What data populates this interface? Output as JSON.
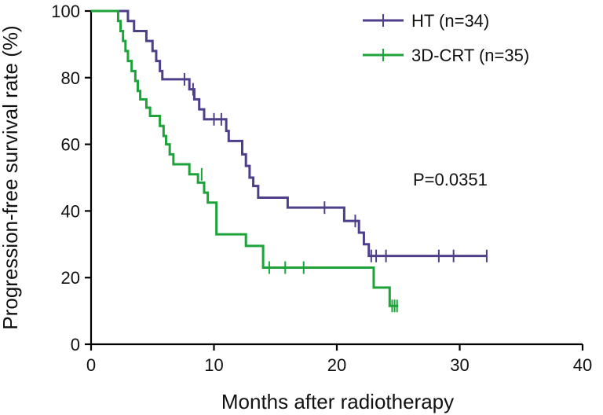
{
  "chart_data": {
    "type": "line",
    "subtype": "kaplan-meier-step",
    "title": "",
    "xlabel": "Months after radiotherapy",
    "ylabel": "Progression-free survival rate (%)",
    "xlim": [
      0,
      40
    ],
    "ylim": [
      0,
      100
    ],
    "xticks": [
      "0",
      "10",
      "20",
      "30",
      "40"
    ],
    "yticks": [
      "0",
      "20",
      "40",
      "60",
      "80",
      "100"
    ],
    "grid": false,
    "legend_position": "top-right",
    "annotation": "P=0.0351",
    "series": [
      {
        "name": "HT (n=34)",
        "color": "#4f3f8a",
        "steps": [
          [
            0,
            100
          ],
          [
            3,
            97
          ],
          [
            3.5,
            94
          ],
          [
            4.5,
            91
          ],
          [
            5,
            88
          ],
          [
            5.3,
            85
          ],
          [
            5.6,
            82
          ],
          [
            5.8,
            79.5
          ],
          [
            8,
            76.5
          ],
          [
            8.4,
            73.5
          ],
          [
            8.8,
            70.5
          ],
          [
            9.2,
            67.5
          ],
          [
            11,
            64
          ],
          [
            11.2,
            61
          ],
          [
            12.3,
            57
          ],
          [
            12.6,
            53.5
          ],
          [
            12.9,
            50
          ],
          [
            13.2,
            47.5
          ],
          [
            13.6,
            44
          ],
          [
            16,
            41
          ],
          [
            20.6,
            37
          ],
          [
            21.8,
            33.5
          ],
          [
            22.2,
            30
          ],
          [
            22.6,
            26.5
          ],
          [
            32.2,
            26.5
          ]
        ],
        "censored": [
          [
            7.6,
            79.5
          ],
          [
            8.3,
            76.5
          ],
          [
            10,
            67.5
          ],
          [
            10.6,
            67.5
          ],
          [
            19,
            41
          ],
          [
            21.5,
            37
          ],
          [
            22.8,
            26.5
          ],
          [
            23.2,
            26.5
          ],
          [
            24,
            26.5
          ],
          [
            28.3,
            26.5
          ],
          [
            29.5,
            26.5
          ],
          [
            32.2,
            26.5
          ]
        ]
      },
      {
        "name": "3D-CRT (n=35)",
        "color": "#1ea23a",
        "steps": [
          [
            0,
            100
          ],
          [
            2.2,
            97
          ],
          [
            2.4,
            94
          ],
          [
            2.6,
            91
          ],
          [
            2.8,
            88
          ],
          [
            3,
            85
          ],
          [
            3.3,
            82
          ],
          [
            3.6,
            79
          ],
          [
            3.8,
            76
          ],
          [
            4,
            73.5
          ],
          [
            4.5,
            71
          ],
          [
            4.8,
            68.5
          ],
          [
            5.6,
            65.5
          ],
          [
            5.9,
            62.5
          ],
          [
            6.1,
            60
          ],
          [
            6.4,
            57
          ],
          [
            6.7,
            54
          ],
          [
            8,
            51
          ],
          [
            8.7,
            48.5
          ],
          [
            9.2,
            45.5
          ],
          [
            9.5,
            42.5
          ],
          [
            10.2,
            33
          ],
          [
            12.6,
            29.5
          ],
          [
            14,
            23
          ],
          [
            23,
            17
          ],
          [
            24.3,
            11.5
          ],
          [
            25,
            11.5
          ]
        ],
        "censored": [
          [
            9,
            51
          ],
          [
            14.5,
            23
          ],
          [
            15.8,
            23
          ],
          [
            17.3,
            23
          ],
          [
            24.5,
            11.5
          ],
          [
            24.7,
            11.5
          ],
          [
            24.9,
            11.5
          ]
        ]
      }
    ]
  }
}
